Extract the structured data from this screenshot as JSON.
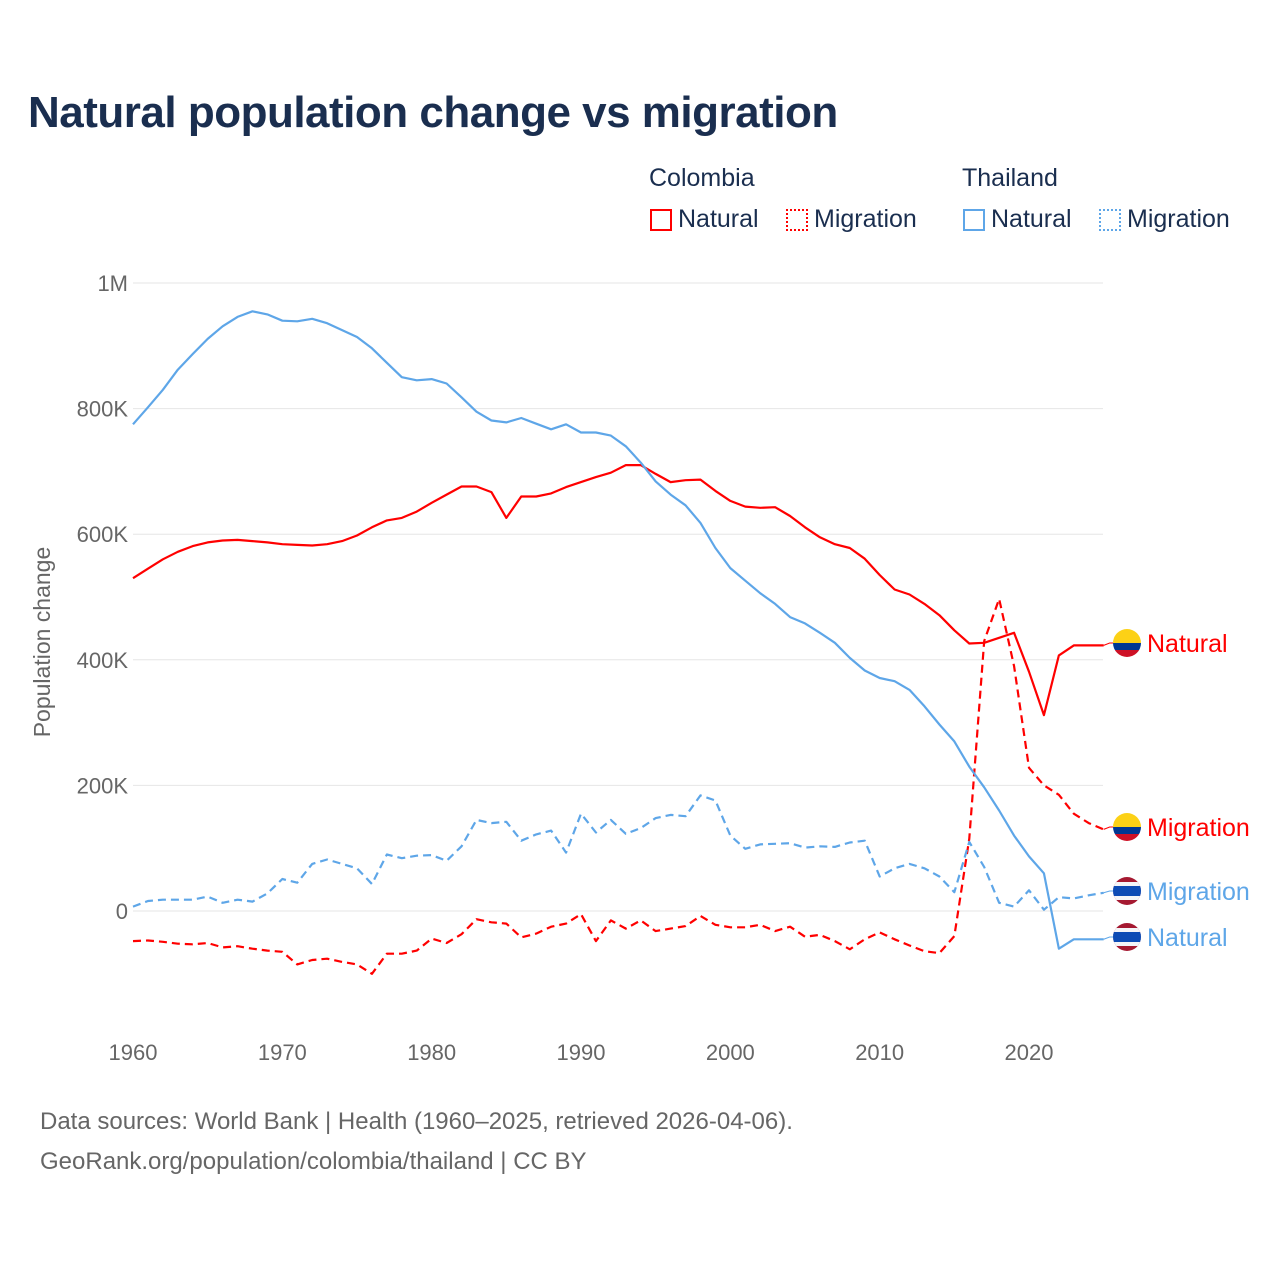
{
  "title": "Natural population change vs migration",
  "legend": {
    "groups": [
      {
        "name": "Colombia",
        "items": [
          "Natural",
          "Migration"
        ]
      },
      {
        "name": "Thailand",
        "items": [
          "Natural",
          "Migration"
        ]
      }
    ]
  },
  "footer": {
    "line1": "Data sources: World Bank | Health (1960–2025, retrieved 2026-04-06).",
    "line2": "GeoRank.org/population/colombia/thailand | CC BY"
  },
  "colors": {
    "colombia": "#ff0000",
    "thailand": "#5ea6e8"
  },
  "chart_data": {
    "type": "line",
    "title": "Natural population change vs migration",
    "xlabel": "",
    "ylabel": "Population change",
    "xlim": [
      1960,
      2025
    ],
    "ylim": [
      -200000,
      1000000
    ],
    "x_ticks": [
      1960,
      1970,
      1980,
      1990,
      2000,
      2010,
      2020
    ],
    "x_tick_labels": [
      "1960",
      "1970",
      "1980",
      "1990",
      "2000",
      "2010",
      "2020"
    ],
    "y_ticks": [
      0,
      200000,
      400000,
      600000,
      800000,
      1000000
    ],
    "y_tick_labels": [
      "0",
      "200K",
      "400K",
      "600K",
      "800K",
      "1M"
    ],
    "grid": true,
    "legend_placement": "top-right",
    "x_start": 1960,
    "series": [
      {
        "name": "Colombia Natural",
        "label": "Natural",
        "country": "colombia",
        "style": "solid",
        "unit": "thousands",
        "values": [
          530,
          545,
          560,
          572,
          581,
          587,
          590,
          591,
          589,
          587,
          584,
          583,
          582,
          584,
          589,
          598,
          611,
          622,
          626,
          636,
          650,
          663,
          676,
          676,
          667,
          626,
          660,
          660,
          665,
          675,
          683,
          691,
          698,
          710,
          710,
          696,
          683,
          686,
          687,
          669,
          653,
          644,
          642,
          643,
          629,
          611,
          595,
          584,
          578,
          561,
          535,
          512,
          504,
          489,
          471,
          447,
          426,
          427,
          435,
          443,
          381,
          312,
          407,
          423,
          423,
          423
        ]
      },
      {
        "name": "Colombia Migration",
        "label": "Migration",
        "country": "colombia",
        "style": "dashed",
        "unit": "thousands",
        "values": [
          -48,
          -47,
          -49,
          -52,
          -53,
          -51,
          -58,
          -56,
          -60,
          -63,
          -65,
          -85,
          -78,
          -76,
          -81,
          -85,
          -100,
          -68,
          -68,
          -63,
          -44,
          -51,
          -37,
          -13,
          -18,
          -20,
          -42,
          -36,
          -25,
          -20,
          -5,
          -48,
          -15,
          -28,
          -15,
          -32,
          -28,
          -24,
          -8,
          -22,
          -26,
          -26,
          -22,
          -32,
          -25,
          -41,
          -38,
          -48,
          -61,
          -45,
          -34,
          -45,
          -55,
          -64,
          -67,
          -40,
          115,
          430,
          497,
          390,
          228,
          200,
          185,
          155,
          140,
          130
        ]
      },
      {
        "name": "Thailand Migration",
        "label": "Migration",
        "country": "thailand",
        "style": "dashed",
        "unit": "thousands",
        "values": [
          7,
          16,
          18,
          18,
          18,
          23,
          13,
          18,
          15,
          28,
          51,
          45,
          75,
          82,
          75,
          68,
          43,
          90,
          84,
          88,
          89,
          80,
          103,
          145,
          140,
          142,
          112,
          122,
          128,
          93,
          155,
          125,
          145,
          123,
          132,
          148,
          153,
          151,
          184,
          176,
          120,
          99,
          106,
          107,
          108,
          101,
          103,
          102,
          109,
          112,
          55,
          68,
          75,
          68,
          55,
          30,
          110,
          70,
          13,
          7,
          33,
          2,
          22,
          20,
          25,
          29
        ]
      },
      {
        "name": "Thailand Natural",
        "label": "Natural",
        "country": "thailand",
        "style": "solid",
        "unit": "thousands",
        "values": [
          775,
          802,
          830,
          862,
          887,
          911,
          931,
          946,
          955,
          950,
          940,
          939,
          943,
          936,
          925,
          914,
          896,
          873,
          850,
          845,
          847,
          840,
          818,
          795,
          781,
          778,
          785,
          776,
          767,
          775,
          762,
          762,
          757,
          740,
          714,
          684,
          663,
          646,
          618,
          578,
          546,
          526,
          506,
          489,
          468,
          458,
          443,
          427,
          403,
          383,
          371,
          366,
          352,
          326,
          297,
          270,
          230,
          197,
          160,
          120,
          87,
          60,
          -60,
          -45,
          -45,
          -45
        ]
      }
    ]
  }
}
